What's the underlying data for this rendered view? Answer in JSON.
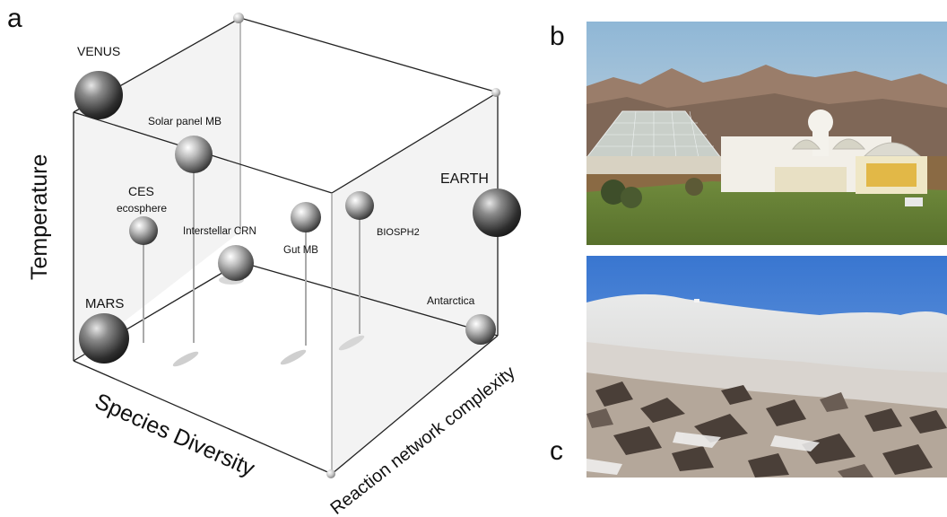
{
  "panels": {
    "a": "a",
    "b": "b",
    "c": "c"
  },
  "axes": {
    "vertical": "Temperature",
    "depth": "Species Diversity",
    "right": "Reaction network complexity"
  },
  "points": {
    "venus": "VENUS",
    "solar_panel": "Solar panel MB",
    "ces_line1": "CES",
    "ces_line2": "ecosphere",
    "interstellar": "Interstellar CRN",
    "gut": "Gut MB",
    "biosph": "BIOSPH2",
    "earth": "EARTH",
    "mars": "MARS",
    "antarctica": "Antarctica"
  },
  "colors": {
    "sphere_light": "#f4f4f4",
    "sphere_dark": "#3a3a3a",
    "cube_face": "#f2f2f2",
    "cube_edge": "#222222",
    "sky_b": "#9ec2dc",
    "sky_c": "#3f7fd1",
    "snow": "#e9ecef",
    "rock": "#4a3f38"
  }
}
